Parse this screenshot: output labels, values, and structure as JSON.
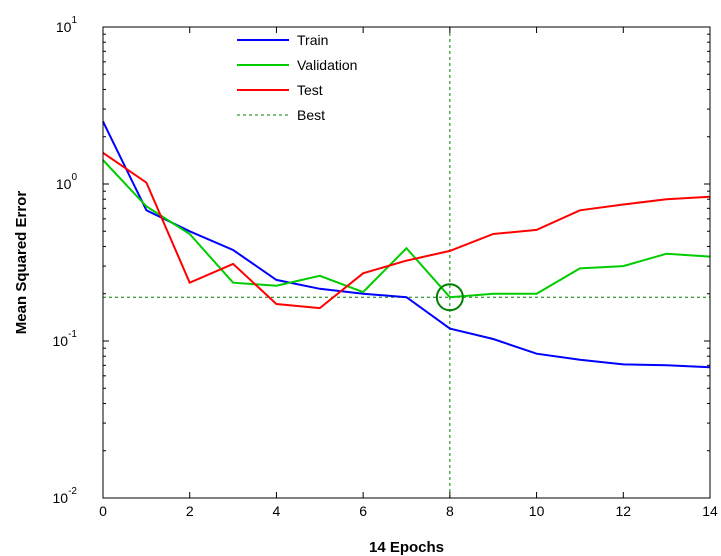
{
  "chart_data": {
    "type": "line",
    "xlabel": "14 Epochs",
    "ylabel": "Mean Squared Error",
    "xlim": [
      0,
      14
    ],
    "ylim": [
      0.01,
      10
    ],
    "y_scale": "log",
    "x_ticks": [
      0,
      2,
      4,
      6,
      8,
      10,
      12,
      14
    ],
    "y_ticks": [
      {
        "value": 0.01,
        "base": "10",
        "exp": "-2"
      },
      {
        "value": 0.1,
        "base": "10",
        "exp": "-1"
      },
      {
        "value": 1,
        "base": "10",
        "exp": "0"
      },
      {
        "value": 10,
        "base": "10",
        "exp": "1"
      }
    ],
    "x": [
      0,
      1,
      2,
      3,
      4,
      5,
      6,
      7,
      8,
      9,
      10,
      11,
      12,
      13,
      14
    ],
    "series": [
      {
        "name": "Train",
        "color": "#0000ff",
        "style": "solid",
        "values": [
          2.5,
          0.68,
          0.5,
          0.38,
          0.245,
          0.215,
          0.2,
          0.19,
          0.12,
          0.103,
          0.083,
          0.076,
          0.071,
          0.07,
          0.068
        ]
      },
      {
        "name": "Validation",
        "color": "#00cc00",
        "style": "solid",
        "values": [
          1.42,
          0.72,
          0.48,
          0.235,
          0.225,
          0.26,
          0.205,
          0.39,
          0.19,
          0.2,
          0.2,
          0.29,
          0.3,
          0.36,
          0.345
        ]
      },
      {
        "name": "Test",
        "color": "#ff0000",
        "style": "solid",
        "values": [
          1.58,
          1.02,
          0.235,
          0.31,
          0.172,
          0.162,
          0.27,
          0.325,
          0.375,
          0.48,
          0.51,
          0.68,
          0.74,
          0.8,
          0.83
        ]
      }
    ],
    "best": {
      "name": "Best",
      "color": "#008000",
      "style": "dashed",
      "epoch": 8,
      "value": 0.19
    },
    "legend_position": "top-center"
  }
}
